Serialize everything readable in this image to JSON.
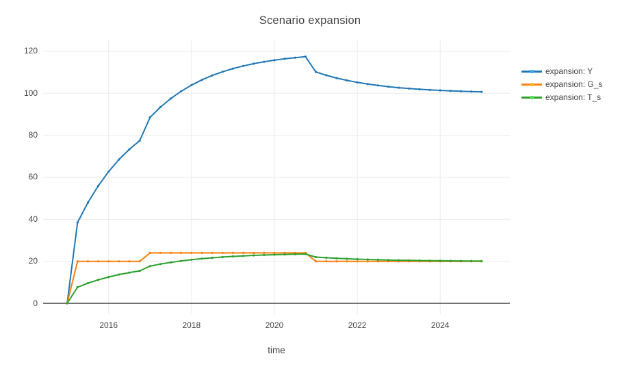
{
  "figure": {
    "title": "Scenario expansion",
    "x_axis_title": "time"
  },
  "colors": {
    "background": "#ffffff",
    "grid": "#ebebeb",
    "zeroline": "#444444",
    "text": "#444444",
    "series_blue": "#1f77b4",
    "series_orange": "#ff7f0e",
    "series_green": "#2ca02c"
  },
  "chart_data": {
    "type": "line",
    "title": "Scenario expansion",
    "xlabel": "time",
    "ylabel": "",
    "grid": true,
    "legend_position": "right",
    "frequency": "quarterly",
    "x_ticks": [
      2016,
      2018,
      2020,
      2022,
      2024
    ],
    "y_ticks": [
      0,
      20,
      40,
      60,
      80,
      100,
      120
    ],
    "xlim": [
      2014.42,
      2025.68
    ],
    "ylim": [
      -5.2,
      125.5
    ],
    "x": [
      2015,
      2015.25,
      2015.5,
      2015.75,
      2016,
      2016.25,
      2016.5,
      2016.75,
      2017,
      2017.25,
      2017.5,
      2017.75,
      2018,
      2018.25,
      2018.5,
      2018.75,
      2019,
      2019.25,
      2019.5,
      2019.75,
      2020,
      2020.25,
      2020.5,
      2020.75,
      2021,
      2021.25,
      2021.5,
      2021.75,
      2022,
      2022.25,
      2022.5,
      2022.75,
      2023,
      2023.25,
      2023.5,
      2023.75,
      2024,
      2024.25,
      2024.5,
      2024.75,
      2025
    ],
    "series": [
      {
        "name": "expansion: Y",
        "color": "#1f77b4",
        "values": [
          0,
          38.46,
          47.93,
          55.94,
          62.72,
          68.45,
          73.31,
          77.41,
          88.58,
          93.41,
          97.5,
          100.97,
          103.89,
          106.37,
          108.47,
          110.24,
          111.74,
          113.01,
          114.09,
          115.0,
          115.77,
          116.42,
          116.97,
          117.44,
          110.14,
          108.58,
          107.26,
          106.14,
          105.2,
          104.4,
          103.72,
          103.15,
          102.66,
          102.25,
          101.91,
          101.61,
          101.37,
          101.16,
          100.98,
          100.83,
          100.7
        ]
      },
      {
        "name": "expansion: G_s",
        "color": "#ff7f0e",
        "values": [
          0,
          20,
          20,
          20,
          20,
          20,
          20,
          20,
          24,
          24,
          24,
          24,
          24,
          24,
          24,
          24,
          24,
          24,
          24,
          24,
          24,
          24,
          24,
          24,
          20,
          20,
          20,
          20,
          20,
          20,
          20,
          20,
          20,
          20,
          20,
          20,
          20,
          20,
          20,
          20,
          20
        ]
      },
      {
        "name": "expansion: T_s",
        "color": "#2ca02c",
        "values": [
          0,
          7.69,
          9.59,
          11.19,
          12.54,
          13.69,
          14.66,
          15.48,
          17.72,
          18.68,
          19.5,
          20.19,
          20.78,
          21.27,
          21.69,
          22.05,
          22.35,
          22.6,
          22.82,
          23.0,
          23.15,
          23.28,
          23.39,
          23.49,
          22.03,
          21.72,
          21.45,
          21.23,
          21.04,
          20.88,
          20.74,
          20.63,
          20.53,
          20.45,
          20.38,
          20.32,
          20.27,
          20.23,
          20.2,
          20.17,
          20.14
        ]
      }
    ]
  }
}
